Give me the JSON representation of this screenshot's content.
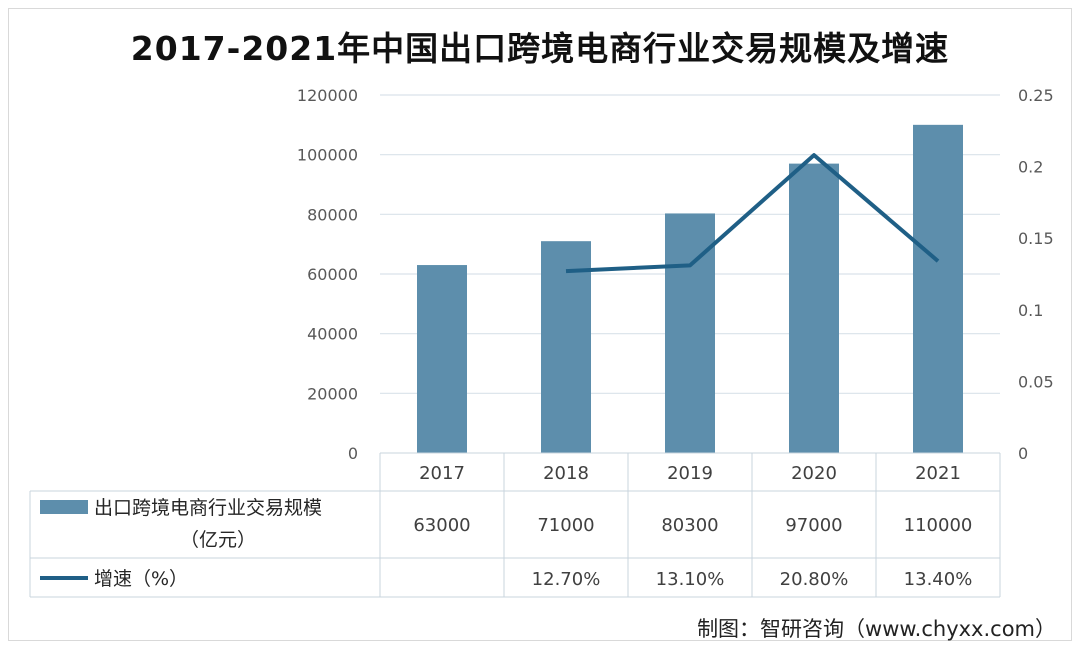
{
  "title": "2017-2021年中国出口跨境电商行业交易规模及增速",
  "source": "制图：智研咨询（www.chyxx.com）",
  "colors": {
    "bar": "#5d8eac",
    "line": "#1f5f86",
    "grid": "#d9e2ea",
    "table_border": "#c8d4de"
  },
  "chart_data": {
    "type": "bar",
    "categories": [
      "2017",
      "2018",
      "2019",
      "2020",
      "2021"
    ],
    "series": [
      {
        "name": "出口跨境电商行业交易规模（亿元）",
        "name_lines": [
          "出口跨境电商行业交易规模",
          "（亿元）"
        ],
        "type": "bar",
        "axis": "left",
        "values": [
          63000,
          71000,
          80300,
          97000,
          110000
        ],
        "labels": [
          "63000",
          "71000",
          "80300",
          "97000",
          "110000"
        ]
      },
      {
        "name": "增速（%）",
        "name_lines": [
          "增速（%）"
        ],
        "type": "line",
        "axis": "right",
        "values": [
          null,
          0.127,
          0.131,
          0.208,
          0.134
        ],
        "labels": [
          "",
          "12.70%",
          "13.10%",
          "20.80%",
          "13.40%"
        ]
      }
    ],
    "y_left": {
      "min": 0,
      "max": 120000,
      "ticks": [
        "0",
        "20000",
        "40000",
        "60000",
        "80000",
        "100000",
        "120000"
      ]
    },
    "y_right": {
      "min": 0,
      "max": 0.25,
      "ticks": [
        "0",
        "0.05",
        "0.1",
        "0.15",
        "0.2",
        "0.25"
      ]
    },
    "grid": true,
    "data_table": true
  }
}
